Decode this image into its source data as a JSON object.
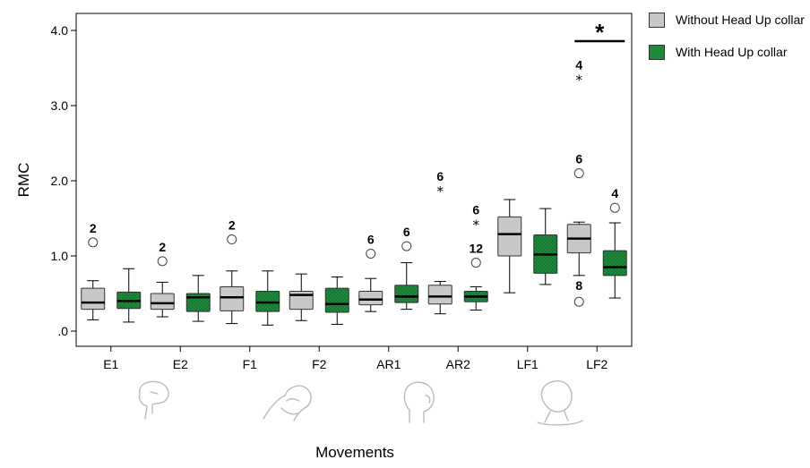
{
  "chart_data": {
    "type": "boxplot",
    "title": "",
    "xlabel": "Movements",
    "ylabel": "RMC",
    "ylim": [
      0,
      4
    ],
    "yticks": [
      0,
      1,
      2,
      3,
      4
    ],
    "ytick_labels": [
      ".0",
      "1.0",
      "2.0",
      "3.0",
      "4.0"
    ],
    "categories": [
      "E1",
      "E2",
      "F1",
      "F2",
      "AR1",
      "AR2",
      "LF1",
      "LF2"
    ],
    "legend_position": "top-right",
    "series": [
      {
        "name": "Without Head Up collar",
        "color": "#c8c8c8",
        "boxes": [
          {
            "whislo": 0.15,
            "q1": 0.29,
            "med": 0.38,
            "q3": 0.57,
            "whishi": 0.67
          },
          {
            "whislo": 0.19,
            "q1": 0.29,
            "med": 0.37,
            "q3": 0.5,
            "whishi": 0.65
          },
          {
            "whislo": 0.1,
            "q1": 0.27,
            "med": 0.45,
            "q3": 0.59,
            "whishi": 0.8
          },
          {
            "whislo": 0.14,
            "q1": 0.29,
            "med": 0.48,
            "q3": 0.53,
            "whishi": 0.76
          },
          {
            "whislo": 0.26,
            "q1": 0.35,
            "med": 0.42,
            "q3": 0.53,
            "whishi": 0.7
          },
          {
            "whislo": 0.23,
            "q1": 0.36,
            "med": 0.46,
            "q3": 0.61,
            "whishi": 0.66
          },
          {
            "whislo": 0.51,
            "q1": 1.0,
            "med": 1.29,
            "q3": 1.52,
            "whishi": 1.75
          },
          {
            "whislo": 0.74,
            "q1": 1.04,
            "med": 1.23,
            "q3": 1.42,
            "whishi": 1.45
          }
        ]
      },
      {
        "name": "With Head Up collar",
        "color": "#1e8a3c",
        "boxes": [
          {
            "whislo": 0.12,
            "q1": 0.3,
            "med": 0.4,
            "q3": 0.52,
            "whishi": 0.83
          },
          {
            "whislo": 0.13,
            "q1": 0.26,
            "med": 0.45,
            "q3": 0.5,
            "whishi": 0.74
          },
          {
            "whislo": 0.08,
            "q1": 0.26,
            "med": 0.38,
            "q3": 0.53,
            "whishi": 0.8
          },
          {
            "whislo": 0.09,
            "q1": 0.25,
            "med": 0.36,
            "q3": 0.57,
            "whishi": 0.72
          },
          {
            "whislo": 0.29,
            "q1": 0.38,
            "med": 0.46,
            "q3": 0.61,
            "whishi": 0.91
          },
          {
            "whislo": 0.28,
            "q1": 0.39,
            "med": 0.46,
            "q3": 0.53,
            "whishi": 0.59
          },
          {
            "whislo": 0.62,
            "q1": 0.77,
            "med": 1.02,
            "q3": 1.28,
            "whishi": 1.63
          },
          {
            "whislo": 0.44,
            "q1": 0.74,
            "med": 0.85,
            "q3": 1.07,
            "whishi": 1.44
          }
        ]
      }
    ],
    "outliers": [
      {
        "category": "E1",
        "series": 0,
        "value": 1.18,
        "marker": "circle",
        "label": "2"
      },
      {
        "category": "E2",
        "series": 0,
        "value": 0.93,
        "marker": "circle",
        "label": "2"
      },
      {
        "category": "F1",
        "series": 0,
        "value": 1.22,
        "marker": "circle",
        "label": "2"
      },
      {
        "category": "AR1",
        "series": 0,
        "value": 1.03,
        "marker": "circle",
        "label": "6"
      },
      {
        "category": "AR1",
        "series": 1,
        "value": 1.13,
        "marker": "circle",
        "label": "6"
      },
      {
        "category": "AR2",
        "series": 0,
        "value": 1.87,
        "marker": "star",
        "label": "6"
      },
      {
        "category": "AR2",
        "series": 1,
        "value": 1.42,
        "marker": "star",
        "label": "6"
      },
      {
        "category": "AR2",
        "series": 1,
        "value": 0.91,
        "marker": "circle",
        "label": "12"
      },
      {
        "category": "LF2",
        "series": 0,
        "value": 3.35,
        "marker": "star",
        "label": "4"
      },
      {
        "category": "LF2",
        "series": 0,
        "value": 2.1,
        "marker": "circle",
        "label": "6"
      },
      {
        "category": "LF2",
        "series": 0,
        "value": 0.39,
        "marker": "circle",
        "label": "8"
      },
      {
        "category": "LF2",
        "series": 1,
        "value": 1.64,
        "marker": "circle",
        "label": "4"
      }
    ],
    "significance": [
      {
        "category": "LF2",
        "label": "*"
      }
    ]
  },
  "legend": {
    "items": [
      {
        "label": "Without Head Up collar",
        "color": "#c8c8c8"
      },
      {
        "label": "With Head Up collar",
        "color": "#1e8a3c"
      }
    ]
  }
}
